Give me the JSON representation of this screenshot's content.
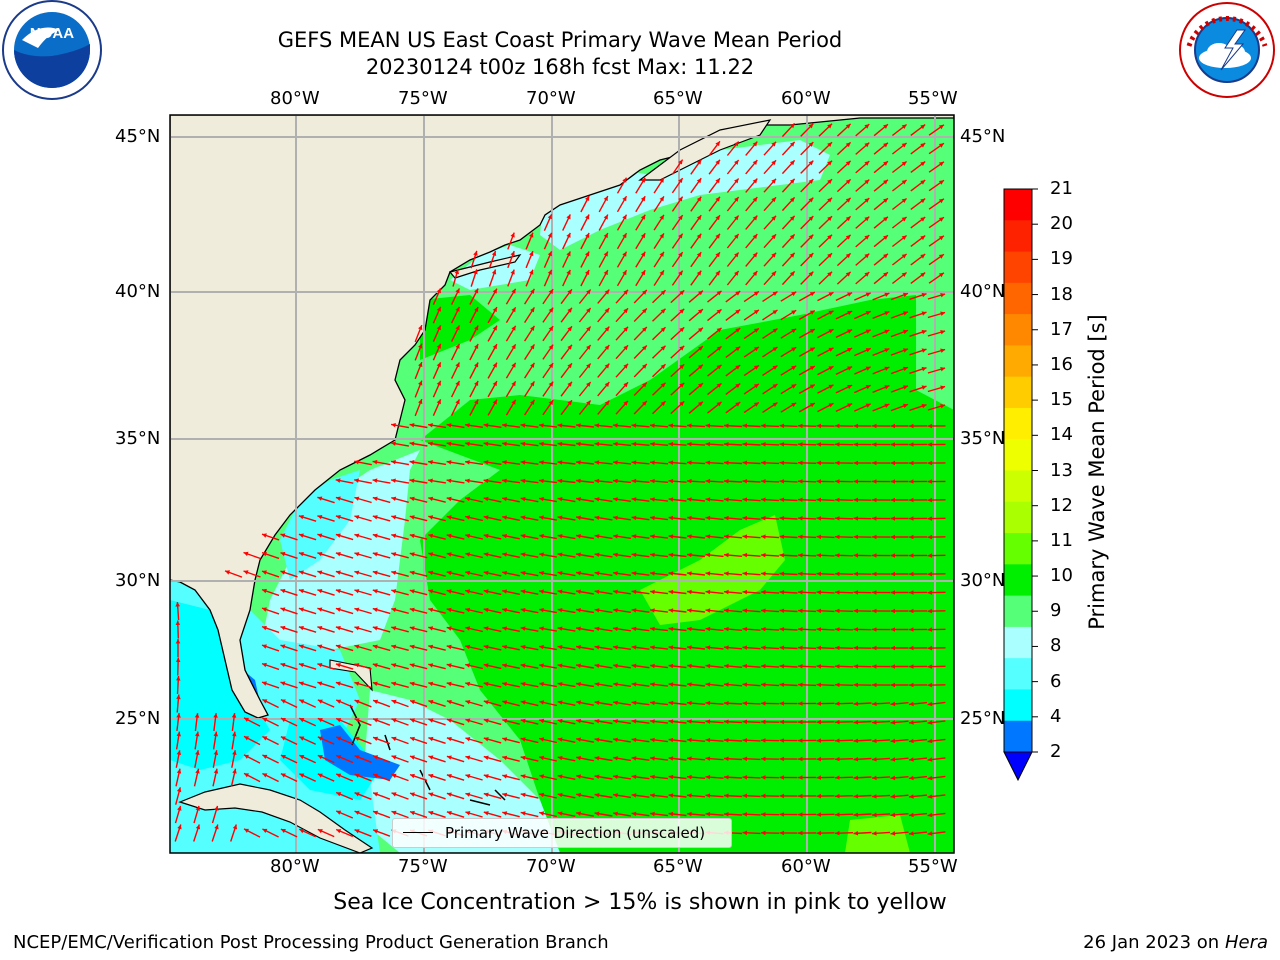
{
  "title": {
    "line1": "GEFS MEAN US East Coast Primary Wave Mean Period",
    "line2": "20230124 t00z 168h fcst   Max: 11.22"
  },
  "logos": {
    "left": "NOAA",
    "left_ring": "NATIONAL OCEANIC AND ATMOSPHERIC ADMINISTRATION · U.S. DEPARTMENT OF COMMERCE",
    "right_ring": "NATIONAL WEATHER SERVICE"
  },
  "map": {
    "lon_labels": [
      "80°W",
      "75°W",
      "70°W",
      "65°W",
      "60°W",
      "55°W"
    ],
    "lat_labels": [
      "45°N",
      "40°N",
      "35°N",
      "30°N",
      "25°N"
    ],
    "legend_text": "Primary Wave Direction (unscaled)",
    "arrow_color": "#ff0000",
    "land_color": "#efecdc"
  },
  "colorbar": {
    "label": "Primary Wave Mean Period [s]",
    "ticks": [
      "21",
      "20",
      "19",
      "18",
      "17",
      "16",
      "15",
      "14",
      "13",
      "12",
      "11",
      "10",
      "9",
      "8",
      "6",
      "4",
      "2"
    ],
    "colors_top_to_bottom": [
      "#ff0000",
      "#ff2200",
      "#ff4400",
      "#ff6600",
      "#ff8800",
      "#ffaa00",
      "#ffcc00",
      "#ffee00",
      "#eeff00",
      "#ccff00",
      "#aaff00",
      "#66ff00",
      "#00ee00",
      "#55ff77",
      "#aaffff",
      "#55ffff",
      "#00ffff",
      "#0077ff",
      "#0000ff"
    ]
  },
  "notes": {
    "sea_ice": "Sea Ice Concentration > 15% is shown in pink to yellow"
  },
  "footer": {
    "left": "NCEP/EMC/Verification Post Processing Product Generation Branch",
    "date": "26 Jan 2023 on ",
    "machine": "Hera"
  }
}
